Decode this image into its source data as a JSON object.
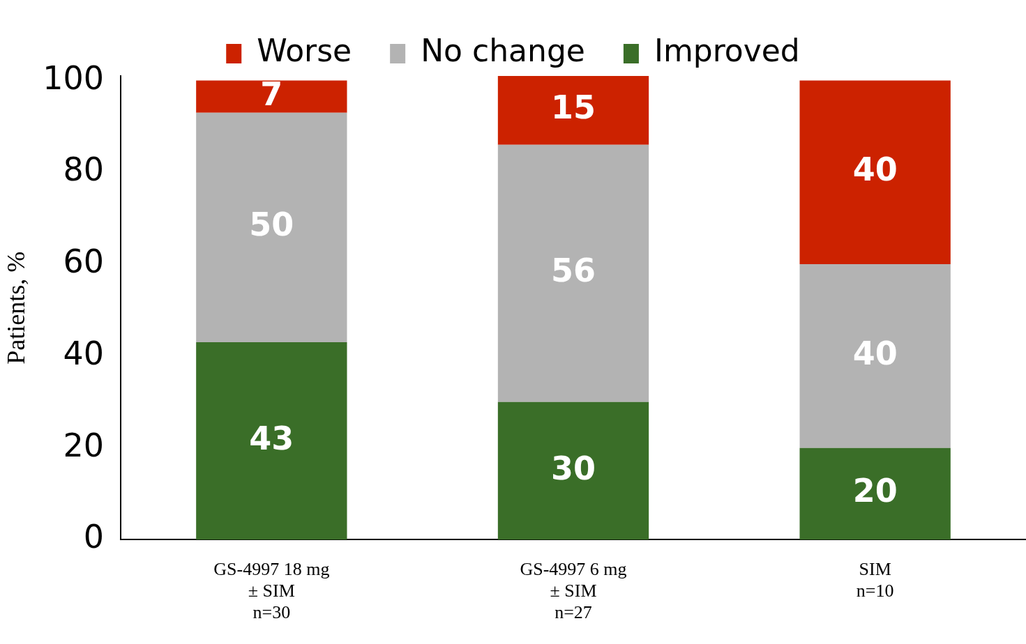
{
  "chart_data": {
    "type": "bar",
    "stacked": true,
    "ylabel": "Patients, %",
    "categories": [
      "GS-4997 18 mg\n± SIM\nn=30",
      "GS-4997 6 mg\n± SIM\nn=27",
      "SIM\nn=10"
    ],
    "series": [
      {
        "name": "Improved",
        "color": "#3a6e28",
        "values": [
          43,
          30,
          20
        ]
      },
      {
        "name": "No change",
        "color": "#b3b3b3",
        "values": [
          50,
          56,
          40
        ]
      },
      {
        "name": "Worse",
        "color": "#cc2200",
        "values": [
          7,
          15,
          40
        ]
      }
    ],
    "ylim": [
      0,
      101
    ],
    "yticks": [
      0,
      20,
      40,
      60,
      80,
      100
    ],
    "grid": false,
    "legend": "top",
    "data_labels": true
  }
}
